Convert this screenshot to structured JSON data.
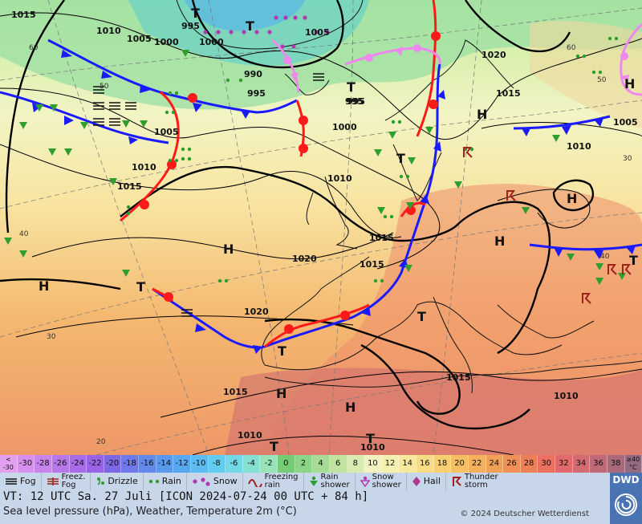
{
  "map": {
    "isobar_labels": [
      "1015",
      "1010",
      "1005",
      "1000",
      "995",
      "990",
      "995",
      "1005",
      "1020",
      "1015",
      "1000",
      "995",
      "1005",
      "1010",
      "1010",
      "1015",
      "1010",
      "1015",
      "1020",
      "1015",
      "1010",
      "1020",
      "1015",
      "1015",
      "1005",
      "1010",
      "1010",
      "1000",
      "995"
    ],
    "lat_labels": [
      "60",
      "50",
      "40",
      "30",
      "20",
      "60",
      "50",
      "40",
      "30"
    ],
    "pressure_systems": [
      {
        "type": "H",
        "name": "high-azores"
      },
      {
        "type": "H",
        "name": "high-scandinavia"
      },
      {
        "type": "H",
        "name": "high-alps"
      },
      {
        "type": "H",
        "name": "high-russia"
      },
      {
        "type": "H",
        "name": "high-atlantic-west"
      },
      {
        "type": "H",
        "name": "high-morocco"
      },
      {
        "type": "H",
        "name": "high-sahara"
      },
      {
        "type": "H",
        "name": "high-north"
      },
      {
        "type": "T",
        "name": "low-iceland"
      },
      {
        "type": "T",
        "name": "low-greenland"
      },
      {
        "type": "T",
        "name": "low-norway"
      },
      {
        "type": "T",
        "name": "low-baltic"
      },
      {
        "type": "T",
        "name": "low-atlantic"
      },
      {
        "type": "T",
        "name": "low-sea"
      },
      {
        "type": "T",
        "name": "low-iberia"
      },
      {
        "type": "T",
        "name": "low-algeria"
      },
      {
        "type": "T",
        "name": "low-africa"
      },
      {
        "type": "T",
        "name": "low-east"
      }
    ],
    "colors": {
      "warm_front": "#ff1a1a",
      "cold_front": "#1a1aff",
      "occlusion": "#ee88ee",
      "isobar": "#000000"
    }
  },
  "scale": {
    "labels": [
      "<\n-30",
      "-30",
      "-28",
      "-26",
      "-24",
      "-22",
      "-20",
      "-18",
      "-16",
      "-14",
      "-12",
      "-10",
      "-8",
      "-6",
      "-4",
      "-2",
      "0",
      "2",
      "4",
      "6",
      "8",
      "10",
      "12",
      "14",
      "16",
      "18",
      "20",
      "22",
      "24",
      "26",
      "28",
      "30",
      "32",
      "34",
      "36",
      "38",
      "≥40\n°C"
    ],
    "colors": [
      "#e4a0f0",
      "#d890ee",
      "#c884ec",
      "#b878ea",
      "#a86ce8",
      "#9a62e6",
      "#7c68e6",
      "#6e78ea",
      "#6288ec",
      "#5898ee",
      "#56a8f0",
      "#5cbcf2",
      "#62ccf0",
      "#72d8e8",
      "#84e0d0",
      "#98e4b8",
      "#74cc74",
      "#8cd486",
      "#a6dc94",
      "#c0e4a0",
      "#d8ecb0",
      "#f2f2c0",
      "#f6f0b0",
      "#f8e89c",
      "#f8dc84",
      "#f8d070",
      "#f6c062",
      "#f4b05a",
      "#f2a058",
      "#f09058",
      "#ee8058",
      "#ec7060",
      "#e26a6a",
      "#d46a72",
      "#c06a78",
      "#aa6a7c",
      "#946a80"
    ]
  },
  "legend": {
    "fog": "Fog",
    "freezing_fog": "Freez.\nFog",
    "drizzle": "Drizzle",
    "rain": "Rain",
    "snow": "Snow",
    "freezing_rain": "Freezing\nrain",
    "rain_shower": "Rain\nshower",
    "snow_shower": "Snow\nshower",
    "hail": "Hail",
    "thunderstorm": "Thunder\nstorm"
  },
  "info": {
    "valid_time": "VT: 12 UTC Sa.  27 Juli [ICON 2024-07-24  00 UTC + 84 h]",
    "description": "Sea level pressure (hPa), Weather, Temperature 2m (°C)",
    "copyright": "© 2024 Deutscher Wetterdienst",
    "logo_text": "DWD"
  }
}
